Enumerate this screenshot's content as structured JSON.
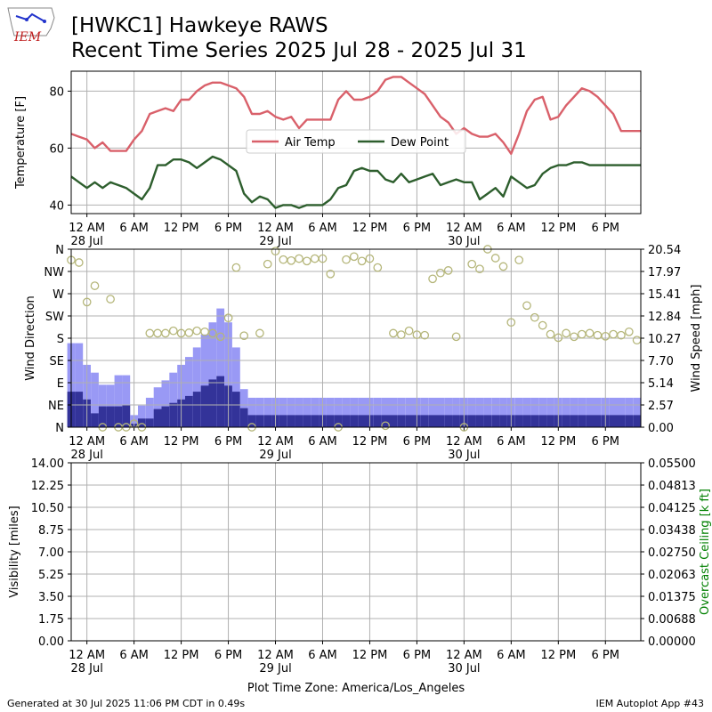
{
  "header": {
    "logo_text": "IEM",
    "title_line1": "[HWKC1] Hawkeye RAWS",
    "title_line2": "Recent Time Series 2025 Jul 28 - 2025 Jul 31"
  },
  "footer": {
    "generated": "Generated at 30 Jul 2025 11:06 PM CDT in 0.49s",
    "app": "IEM Autoplot App #43",
    "tz_label": "Plot Time Zone: America/Los_Angeles"
  },
  "x_ticks": [
    {
      "t": 0,
      "label": "12 AM",
      "date": "28 Jul"
    },
    {
      "t": 6,
      "label": "6 AM",
      "date": ""
    },
    {
      "t": 12,
      "label": "12 PM",
      "date": ""
    },
    {
      "t": 18,
      "label": "6 PM",
      "date": ""
    },
    {
      "t": 24,
      "label": "12 AM",
      "date": "29 Jul"
    },
    {
      "t": 30,
      "label": "6 AM",
      "date": ""
    },
    {
      "t": 36,
      "label": "12 PM",
      "date": ""
    },
    {
      "t": 42,
      "label": "6 PM",
      "date": ""
    },
    {
      "t": 48,
      "label": "12 AM",
      "date": "30 Jul"
    },
    {
      "t": 54,
      "label": "6 AM",
      "date": ""
    },
    {
      "t": 60,
      "label": "12 PM",
      "date": ""
    },
    {
      "t": 66,
      "label": "6 PM",
      "date": ""
    }
  ],
  "chart_data": [
    {
      "type": "line",
      "ylabel": "Temperature [F]",
      "ylim": [
        37,
        87
      ],
      "yticks": [
        40,
        60,
        80
      ],
      "xlim": [
        -2,
        70.5
      ],
      "grid": true,
      "legend_position": "center",
      "series": [
        {
          "name": "Air Temp",
          "color": "#d9606a",
          "x": [
            -2,
            -1,
            0,
            1,
            2,
            3,
            4,
            5,
            6,
            7,
            8,
            9,
            10,
            11,
            12,
            13,
            14,
            15,
            16,
            17,
            18,
            19,
            20,
            21,
            22,
            23,
            24,
            25,
            26,
            27,
            28,
            29,
            30,
            31,
            32,
            33,
            34,
            35,
            36,
            37,
            38,
            39,
            40,
            41,
            42,
            43,
            44,
            45,
            46,
            47,
            48,
            49,
            50,
            51,
            52,
            53,
            54,
            55,
            56,
            57,
            58,
            59,
            60,
            61,
            62,
            63,
            64,
            65,
            66,
            67,
            68,
            69,
            70,
            70.5
          ],
          "y": [
            65,
            64,
            63,
            60,
            62,
            59,
            59,
            59,
            63,
            66,
            72,
            73,
            74,
            73,
            77,
            77,
            80,
            82,
            83,
            83,
            82,
            81,
            78,
            72,
            72,
            73,
            71,
            70,
            71,
            67,
            70,
            70,
            70,
            70,
            77,
            80,
            77,
            77,
            78,
            80,
            84,
            85,
            85,
            83,
            81,
            79,
            75,
            71,
            69,
            65,
            67,
            65,
            64,
            64,
            65,
            62,
            58,
            65,
            73,
            77,
            78,
            70,
            71,
            75,
            78,
            81,
            80,
            78,
            75,
            72,
            66,
            66,
            66,
            66
          ]
        },
        {
          "name": "Dew Point",
          "color": "#2d5e2d",
          "x": [
            -2,
            -1,
            0,
            1,
            2,
            3,
            4,
            5,
            6,
            7,
            8,
            9,
            10,
            11,
            12,
            13,
            14,
            15,
            16,
            17,
            18,
            19,
            20,
            21,
            22,
            23,
            24,
            25,
            26,
            27,
            28,
            29,
            30,
            31,
            32,
            33,
            34,
            35,
            36,
            37,
            38,
            39,
            40,
            41,
            42,
            43,
            44,
            45,
            46,
            47,
            48,
            49,
            50,
            51,
            52,
            53,
            54,
            55,
            56,
            57,
            58,
            59,
            60,
            61,
            62,
            63,
            64,
            65,
            66,
            67,
            68,
            69,
            70,
            70.5
          ],
          "y": [
            50,
            48,
            46,
            48,
            46,
            48,
            47,
            46,
            44,
            42,
            46,
            54,
            54,
            56,
            56,
            55,
            53,
            55,
            57,
            56,
            54,
            52,
            44,
            41,
            43,
            42,
            39,
            40,
            40,
            39,
            40,
            40,
            40,
            42,
            46,
            47,
            52,
            53,
            52,
            52,
            49,
            48,
            51,
            48,
            49,
            50,
            51,
            47,
            48,
            49,
            48,
            48,
            42,
            44,
            46,
            43,
            50,
            48,
            46,
            47,
            51,
            53,
            54,
            54,
            55,
            55,
            54,
            54,
            54,
            54,
            54,
            54,
            54,
            54
          ]
        }
      ]
    },
    {
      "type": "bar",
      "ylabel": "Wind Direction",
      "y2label": "Wind Speed [mph]",
      "ylim": [
        0,
        360
      ],
      "yticks": [
        0,
        45,
        90,
        135,
        180,
        225,
        270,
        315,
        360
      ],
      "ytick_labels": [
        "N",
        "NE",
        "E",
        "SE",
        "S",
        "SW",
        "W",
        "NW",
        "N"
      ],
      "y2lim": [
        0,
        20.54
      ],
      "y2ticks": [
        "0.00",
        "2.57",
        "5.14",
        "7.70",
        "10.27",
        "12.84",
        "15.41",
        "17.97",
        "20.54"
      ],
      "xlim": [
        -2,
        70.5
      ],
      "grid": true,
      "bar_colors": {
        "gust": "#9999f5",
        "wind": "#333399"
      },
      "marker_color": "#b5b67a",
      "x": [
        -2,
        -1,
        0,
        1,
        2,
        3,
        4,
        5,
        6,
        7,
        8,
        9,
        10,
        11,
        12,
        13,
        14,
        15,
        16,
        17,
        18,
        19,
        20,
        21,
        22,
        23,
        24,
        25,
        26,
        27,
        28,
        29,
        30,
        31,
        32,
        33,
        34,
        35,
        36,
        37,
        38,
        39,
        40,
        41,
        42,
        43,
        44,
        45,
        46,
        47,
        48,
        49,
        50,
        51,
        52,
        53,
        54,
        55,
        56,
        57,
        58,
        59,
        60,
        61,
        62,
        63,
        64,
        65,
        66,
        67,
        68,
        69,
        70
      ],
      "gust_mph": [
        9.7,
        9.7,
        7.2,
        6.3,
        4.9,
        4.9,
        6.0,
        6.0,
        1.4,
        2.5,
        3.4,
        4.6,
        5.4,
        6.3,
        7.2,
        8.1,
        9.2,
        10.7,
        12.1,
        13.7,
        12.1,
        9.2,
        4.4,
        3.4,
        3.4,
        3.4,
        3.4,
        3.4,
        3.4,
        3.4,
        3.4,
        3.4,
        3.4,
        3.4,
        3.4,
        3.4,
        3.4,
        3.4,
        3.4,
        3.4,
        3.4,
        3.4,
        3.4,
        3.4,
        3.4,
        3.4,
        3.4,
        3.4,
        3.4,
        3.4,
        3.4,
        3.4,
        3.4,
        3.4,
        3.4,
        3.4,
        3.4,
        3.4,
        3.4,
        3.4,
        3.4,
        3.4,
        3.4,
        3.4,
        3.4,
        3.4,
        3.4,
        3.4,
        3.4,
        3.4,
        3.4,
        3.4,
        3.4
      ],
      "wind_mph": [
        4.1,
        4.1,
        3.2,
        1.6,
        2.4,
        2.4,
        2.4,
        2.6,
        0.4,
        1.0,
        1.0,
        2.1,
        2.4,
        2.8,
        3.2,
        3.6,
        4.1,
        4.8,
        5.5,
        5.9,
        4.8,
        4.1,
        2.2,
        1.4,
        1.4,
        1.4,
        1.4,
        1.4,
        1.4,
        1.4,
        1.4,
        1.4,
        1.4,
        1.4,
        1.4,
        1.4,
        1.4,
        1.4,
        1.4,
        1.4,
        1.4,
        1.4,
        1.4,
        1.4,
        1.4,
        1.4,
        1.4,
        1.4,
        1.4,
        1.4,
        1.4,
        1.4,
        1.4,
        1.4,
        1.4,
        1.4,
        1.4,
        1.4,
        1.4,
        1.4,
        1.4,
        1.4,
        1.4,
        1.4,
        1.4,
        1.4,
        1.4,
        1.4,
        1.4,
        1.4,
        1.4,
        1.4,
        1.4
      ],
      "direction_deg": [
        338,
        333,
        253,
        286,
        0,
        259,
        0,
        0,
        7,
        0,
        190,
        190,
        190,
        195,
        190,
        191,
        195,
        193,
        190,
        183,
        221,
        323,
        185,
        0,
        190,
        330,
        356,
        339,
        337,
        341,
        336,
        341,
        341,
        310,
        0,
        339,
        345,
        336,
        341,
        323,
        3,
        190,
        187,
        195,
        187,
        186,
        300,
        312,
        317,
        183,
        0,
        330,
        320,
        367,
        342,
        325,
        212,
        338,
        246,
        222,
        206,
        188,
        181,
        190,
        183,
        188,
        190,
        186,
        184,
        188,
        186,
        193,
        176
      ]
    },
    {
      "type": "line",
      "ylabel": "Visibility [miles]",
      "y2label": "Overcast Ceiling [k ft]",
      "ylim": [
        0,
        14
      ],
      "yticks": [
        "0.00",
        "1.75",
        "3.50",
        "5.25",
        "7.00",
        "8.75",
        "10.50",
        "12.25",
        "14.00"
      ],
      "y2lim": [
        0,
        0.055
      ],
      "y2ticks": [
        "0.00000",
        "0.00688",
        "0.01375",
        "0.02063",
        "0.02750",
        "0.03438",
        "0.04125",
        "0.04813",
        "0.05500"
      ],
      "xlim": [
        -2,
        70.5
      ],
      "grid": true,
      "series": []
    }
  ]
}
